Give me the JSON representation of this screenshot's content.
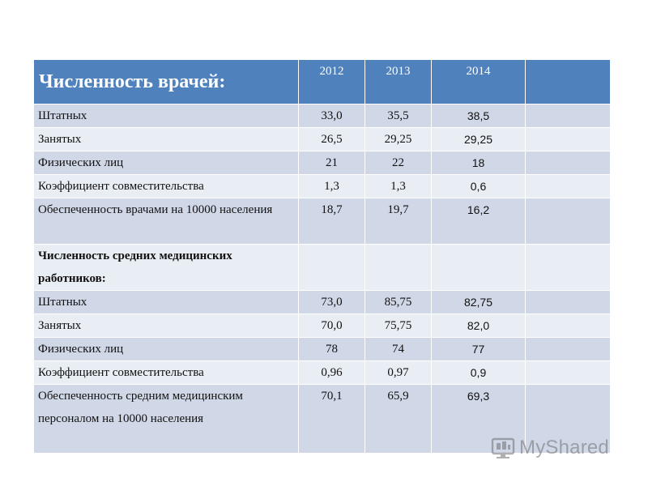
{
  "table": {
    "title": "Численность врачей:",
    "years": [
      "2012",
      "2013",
      "2014"
    ],
    "rows": [
      {
        "label": "Штатных",
        "v2012": "33,0",
        "v2013": "35,5",
        "v2014": "38,5"
      },
      {
        "label": "Занятых",
        "v2012": "26,5",
        "v2013": "29,25",
        "v2014": "29,25"
      },
      {
        "label": "Физических лиц",
        "v2012": "21",
        "v2013": "22",
        "v2014": "18"
      },
      {
        "label": "Коэффициент совместительства",
        "v2012": "1,3",
        "v2013": "1,3",
        "v2014": "0,6"
      },
      {
        "label": "Обеспеченность врачами на 10000 населения",
        "v2012": "18,7",
        "v2013": "19,7",
        "v2014": "16,2"
      },
      {
        "label": "Численность средних медицинских работников:",
        "v2012": "",
        "v2013": "",
        "v2014": ""
      },
      {
        "label": "Штатных",
        "v2012": "73,0",
        "v2013": "85,75",
        "v2014": "82,75"
      },
      {
        "label": "Занятых",
        "v2012": "70,0",
        "v2013": "75,75",
        "v2014": "82,0"
      },
      {
        "label": "Физических лиц",
        "v2012": "78",
        "v2013": "74",
        "v2014": "77"
      },
      {
        "label": "Коэффициент совместительства",
        "v2012": "0,96",
        "v2013": "0,97",
        "v2014": "0,9"
      },
      {
        "label": "Обеспеченность средним медицинским персоналом на 10000 населения",
        "v2012": "70,1",
        "v2013": "65,9",
        "v2014": "69,3"
      }
    ]
  },
  "watermark": {
    "text": "MyShared",
    "icon": "myshared-logo-icon"
  },
  "colors": {
    "header": "#4f81bd",
    "row_light": "#e9edf4",
    "row_dark": "#d0d8e8"
  }
}
